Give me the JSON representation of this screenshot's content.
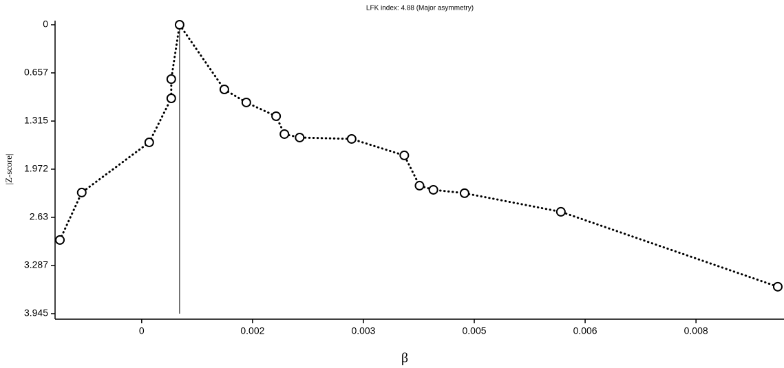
{
  "chart_data": {
    "type": "line",
    "title": "LFK index: 4.88 (Major asymmetry)",
    "x_label": "β",
    "y_label": "|Z-score|",
    "x": [
      -0.00118,
      -0.000865,
      0.000109,
      0.000427,
      0.000427,
      0.000547,
      0.001193,
      0.00151,
      0.00194,
      0.00206,
      0.00228,
      0.00303,
      0.00379,
      0.00401,
      0.00421,
      0.00466,
      0.00605,
      0.00918
    ],
    "series": [
      {
        "name": "|Z-score|",
        "color": "#000000",
        "values": [
          2.939,
          2.291,
          1.606,
          1.005,
          0.742,
          0,
          0.883,
          1.061,
          1.249,
          1.493,
          1.54,
          1.559,
          1.784,
          2.197,
          2.254,
          2.3,
          2.554,
          3.577
        ]
      }
    ],
    "vline_x": 0.000547,
    "xlim": [
      -0.00125,
      0.00927
    ],
    "xticks": [
      0,
      {
        "value": 0.0016,
        "label": "0.002"
      },
      {
        "value": 0.0032,
        "label": "0.003"
      },
      {
        "value": 0.0048,
        "label": "0.005"
      },
      {
        "value": 0.0064,
        "label": "0.006"
      },
      0.008
    ],
    "ylim": [
      0,
      3.945
    ],
    "yticks": [
      0,
      0.657,
      1.315,
      1.972,
      2.63,
      3.287,
      3.945
    ],
    "y_inverted": true,
    "grid": false
  }
}
